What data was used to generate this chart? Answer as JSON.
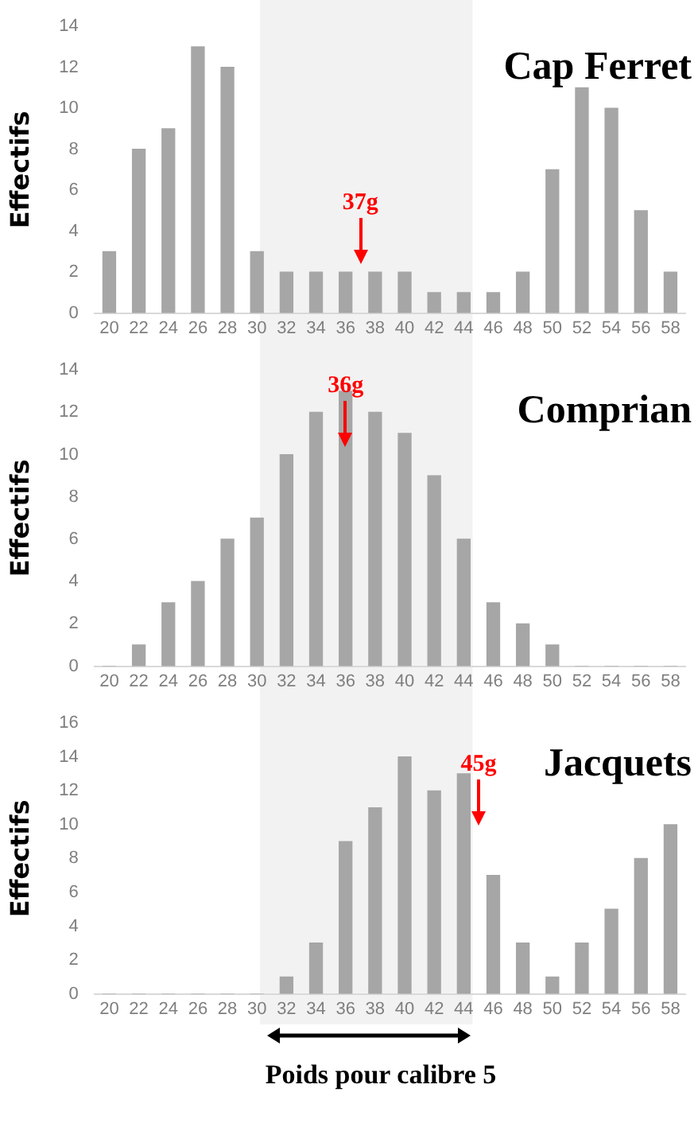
{
  "chart_data": [
    {
      "type": "bar",
      "title": "Cap Ferret",
      "ylabel": "Effectifs",
      "x": [
        20,
        22,
        24,
        26,
        28,
        30,
        32,
        34,
        36,
        38,
        40,
        42,
        44,
        46,
        48,
        50,
        52,
        54,
        56,
        58
      ],
      "values": [
        3,
        8,
        9,
        13,
        12,
        3,
        2,
        2,
        2,
        2,
        2,
        1,
        1,
        1,
        2,
        7,
        11,
        10,
        5,
        2
      ],
      "color": "#a6a6a6",
      "xlim": [
        19,
        59
      ],
      "xticks": [
        20,
        22,
        24,
        26,
        28,
        30,
        32,
        34,
        36,
        38,
        40,
        42,
        44,
        46,
        48,
        50,
        52,
        54,
        56,
        58
      ],
      "ylim": [
        0,
        14
      ],
      "yticks": [
        0,
        2,
        4,
        6,
        8,
        10,
        12,
        14
      ],
      "bands": [
        {
          "axis": "x",
          "from": 30.2,
          "to": 44.6,
          "color": "#f2f2f2"
        }
      ],
      "annotations": [
        "37g"
      ]
    },
    {
      "type": "bar",
      "title": "Comprian",
      "ylabel": "Effectifs",
      "x": [
        20,
        22,
        24,
        26,
        28,
        30,
        32,
        34,
        36,
        38,
        40,
        42,
        44,
        46,
        48,
        50,
        52,
        54,
        56,
        58
      ],
      "values": [
        0,
        1,
        3,
        4,
        6,
        7,
        10,
        12,
        13,
        12,
        11,
        9,
        6,
        3,
        2,
        1,
        0,
        0,
        0,
        0
      ],
      "color": "#a6a6a6",
      "xlim": [
        19,
        59
      ],
      "xticks": [
        20,
        22,
        24,
        26,
        28,
        30,
        32,
        34,
        36,
        38,
        40,
        42,
        44,
        46,
        48,
        50,
        52,
        54,
        56,
        58
      ],
      "ylim": [
        0,
        14
      ],
      "yticks": [
        0,
        2,
        4,
        6,
        8,
        10,
        12,
        14
      ],
      "bands": [
        {
          "axis": "x",
          "from": 30.2,
          "to": 44.6,
          "color": "#f2f2f2"
        }
      ],
      "annotations": [
        "36g"
      ]
    },
    {
      "type": "bar",
      "title": "Jacquets",
      "ylabel": "Effectifs",
      "xlabel": "Poids pour calibre 5",
      "x": [
        20,
        22,
        24,
        26,
        28,
        30,
        32,
        34,
        36,
        38,
        40,
        42,
        44,
        46,
        48,
        50,
        52,
        54,
        56,
        58
      ],
      "values": [
        0,
        0,
        0,
        0,
        0,
        0,
        1,
        3,
        9,
        11,
        14,
        12,
        13,
        7,
        3,
        1,
        3,
        5,
        8,
        10
      ],
      "color": "#a6a6a6",
      "xlim": [
        19,
        59
      ],
      "xticks": [
        20,
        22,
        24,
        26,
        28,
        30,
        32,
        34,
        36,
        38,
        40,
        42,
        44,
        46,
        48,
        50,
        52,
        54,
        56,
        58
      ],
      "ylim": [
        0,
        16
      ],
      "yticks": [
        0,
        2,
        4,
        6,
        8,
        10,
        12,
        14,
        16
      ],
      "bands": [
        {
          "axis": "x",
          "from": 30.2,
          "to": 44.6,
          "color": "#f2f2f2"
        }
      ],
      "annotations": [
        "45g"
      ]
    }
  ]
}
